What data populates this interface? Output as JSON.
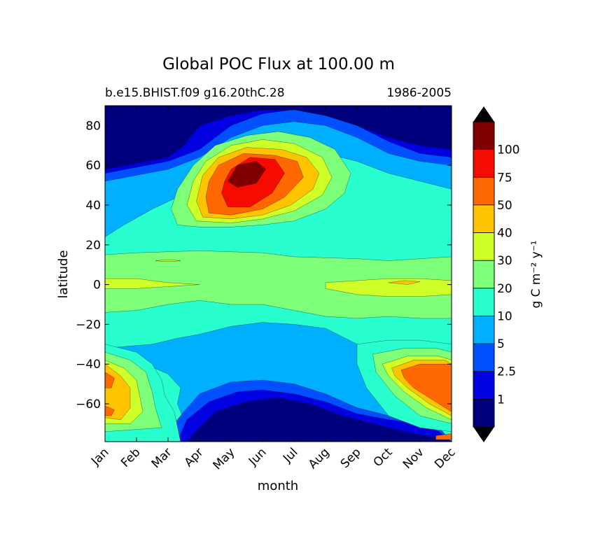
{
  "chart_data": {
    "type": "contourf",
    "title": "Global POC Flux at 100.00 m",
    "subtitle_left": "b.e15.BHIST.f09 g16.20thC.28",
    "subtitle_right": "1986-2005",
    "xlabel": "month",
    "ylabel": "latitude",
    "x_ticks": [
      "Jan",
      "Feb",
      "Mar",
      "Apr",
      "May",
      "Jun",
      "Jul",
      "Aug",
      "Sep",
      "Oct",
      "Nov",
      "Dec"
    ],
    "y_ticks": [
      80,
      60,
      40,
      20,
      0,
      -20,
      -40,
      -60
    ],
    "ylim": [
      -79,
      90
    ],
    "colorbar": {
      "label": "g C m⁻² y⁻¹",
      "levels": [
        1,
        2.5,
        5,
        10,
        20,
        30,
        40,
        50,
        75,
        100
      ],
      "level_labels": [
        "1",
        "2.5",
        "5",
        "10",
        "20",
        "30",
        "40",
        "50",
        "75",
        "100"
      ],
      "colors": [
        "#00007f",
        "#0000e0",
        "#0050ff",
        "#00b0ff",
        "#29ffce",
        "#7dff7a",
        "#ceff29",
        "#ffc400",
        "#ff6800",
        "#f50b00",
        "#7f0000"
      ],
      "extend": "both"
    },
    "features": [
      {
        "name": "arctic low",
        "level_min": 0,
        "months": [
          1,
          12
        ],
        "lat": [
          60,
          90
        ],
        "note": "polar night minimum < 1"
      },
      {
        "name": "north atlantic bloom",
        "level_max": 100,
        "months": [
          4,
          8
        ],
        "lat": [
          30,
          68
        ],
        "peak_month": 5.5,
        "peak_lat": 56
      },
      {
        "name": "equatorial band",
        "level_max": 30,
        "months": [
          1,
          12
        ],
        "lat": [
          -15,
          15
        ]
      },
      {
        "name": "southern ocean bloom",
        "level_max": 50,
        "months": [
          10,
          12
        ],
        "lat": [
          -70,
          -30
        ],
        "peak_lat": -50
      },
      {
        "name": "austral winter low",
        "level_min": 0,
        "months": [
          4,
          10
        ],
        "lat": [
          -79,
          -55
        ]
      }
    ]
  }
}
